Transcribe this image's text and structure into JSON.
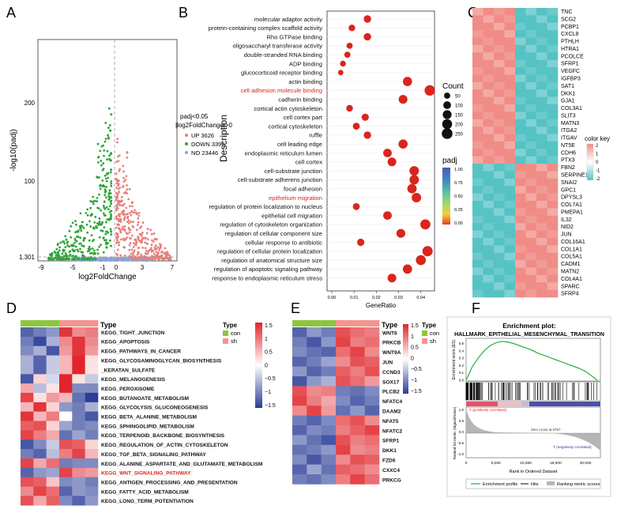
{
  "colors": {
    "up": "#e8807b",
    "down": "#2fa53a",
    "no": "#8aa5d8",
    "dot": "#d9261c",
    "heat_high": "#e0262c",
    "heat_low": "#2b3d97",
    "heat_mid": "#ffffff",
    "hm_c_high": "#f08c86",
    "hm_c_low": "#55c2c4",
    "grp_con": "#8cc63f",
    "grp_sh": "#f6938d",
    "highlight": "#d7261e"
  },
  "panels": {
    "A": "A",
    "B": "B",
    "C": "C",
    "D": "D",
    "E": "E",
    "F": "F"
  },
  "volcano": {
    "ylabel": "-log10(padj)",
    "xlabel": "log2FoldChange",
    "xticks": [
      "-9",
      "-5",
      "-1",
      "0",
      "3",
      "7"
    ],
    "yticks": [
      "200",
      "100",
      "1.301"
    ],
    "legend_title_1": "padj<0.05",
    "legend_title_2": "|log2FoldChange|>0",
    "legend": [
      "UP 3626",
      "DOWN 3396",
      "NO 23446"
    ]
  },
  "chart_data": [
    {
      "type": "scatter",
      "panel": "A",
      "xlabel": "log2FoldChange",
      "ylabel": "-log10(padj)",
      "xlim": [
        -9,
        7.5
      ],
      "ylim": [
        0,
        285
      ],
      "threshold_y": 1.301,
      "series": [
        {
          "name": "UP",
          "count": 3626
        },
        {
          "name": "DOWN",
          "count": 3396
        },
        {
          "name": "NO",
          "count": 23446
        }
      ]
    },
    {
      "type": "scatter",
      "panel": "B",
      "xlabel": "GeneRatio",
      "ylabel": "Description",
      "xlim": [
        0,
        0.045
      ],
      "xticks": [
        "0.00",
        "0.01",
        "0.02",
        "0.03",
        "0.04"
      ],
      "legend_count_title": "Count",
      "legend_count": [
        "50",
        "100",
        "150",
        "200",
        "250"
      ],
      "legend_padj_title": "padj",
      "legend_padj": [
        "1.00",
        "0.75",
        "0.50",
        "0.25",
        "0.00"
      ],
      "terms": [
        "molecular adaptor activity",
        "protein-containing complex scaffold activity",
        "Rho GTPase binding",
        "oligosaccharyl transferase activity",
        "double-stranded RNA binding",
        "ADP binding",
        "glucocorticoid receptor binding",
        "actin binding",
        "cell adhesion molecule binding",
        "cadherin binding",
        "cortical actin cytoskeleton",
        "cell cortex part",
        "cortical cytoskeleton",
        "ruffle",
        "cell leading edge",
        "endoplasmic reticulum lumen",
        "cell cortex",
        "cell-substrate junction",
        "cell-substrate adherens junction",
        "focal adhesion",
        "epithelium migration",
        "regulation of protein localization to nucleus",
        "epithelial cell migration",
        "regulation of cytoskeleton organization",
        "regulation of cellular component size",
        "cellular response to antibiotic",
        "regulation of cellular protein localization",
        "regulation of anatomical structure size",
        "regulation of apoptotic signaling pathway",
        "response to endoplasmic reticulum stress"
      ],
      "highlighted": [
        "cell adhesion molecule binding",
        "epithelium migration"
      ],
      "gene_ratio": [
        0.016,
        0.009,
        0.016,
        0.008,
        0.007,
        0.005,
        0.004,
        0.034,
        0.044,
        0.032,
        0.008,
        0.015,
        0.011,
        0.016,
        0.032,
        0.025,
        0.027,
        0.037,
        0.037,
        0.036,
        0.038,
        0.011,
        0.025,
        0.042,
        0.031,
        0.013,
        0.043,
        0.04,
        0.034,
        0.027
      ],
      "count": [
        90,
        60,
        90,
        50,
        50,
        40,
        30,
        160,
        230,
        150,
        60,
        80,
        70,
        90,
        160,
        130,
        140,
        180,
        180,
        170,
        180,
        70,
        130,
        210,
        150,
        80,
        220,
        200,
        170,
        140
      ]
    },
    {
      "type": "heatmap",
      "panel": "C",
      "legend_title": "color key",
      "legend_ticks": [
        "2",
        "1",
        "0",
        "-1",
        "-2"
      ],
      "genes": [
        "TNC",
        "SCG2",
        "PCBP1",
        "CXCL8",
        "PTHLH",
        "HTRA1",
        "PCOLCE",
        "SFRP1",
        "VEGFC",
        "IGFBP3",
        "SAT1",
        "DKK1",
        "GJA1",
        "COL3A1",
        "SLIT3",
        "MATN3",
        "ITGA2",
        "ITGAV",
        "NT5E",
        "CDH6",
        "PTX3",
        "FBN2",
        "SERPINE1",
        "SNAI2",
        "GPC1",
        "DPYSL3",
        "COL7A1",
        "PMEPA1",
        "IL32",
        "NID2",
        "JUN",
        "COL16A1",
        "COL1A1",
        "COL5A1",
        "CADM1",
        "MATN2",
        "COL4A1",
        "SPARC",
        "SFRP4"
      ]
    },
    {
      "type": "heatmap",
      "panel": "D",
      "legend_type_title": "Type",
      "groups": [
        "con",
        "sh"
      ],
      "col_groups": [
        "con",
        "con",
        "con",
        "sh",
        "sh",
        "sh"
      ],
      "legend_ticks": [
        "1.5",
        "1",
        "0.5",
        "0",
        "−0.5",
        "−1",
        "−1.5"
      ],
      "rows": [
        "KEGG_TIGHT_JUNCTION",
        "KEGG_APOPTOSIS",
        "KEGG_PATHWAYS_IN_CANCER",
        "KEGG_GLYCOSAMINOGLYCAN_BIOSYNTHESIS",
        "_KERATAN_SULFATE",
        "KEGG_MELANOGENESIS",
        "KEGG_PEROXISOME",
        "KEGG_BUTANOATE_METABOLISM",
        "KEGG_GLYCOLYSIS_GLUCONEOGENESIS",
        "KEGG_BETA_ALANINE_METABOLISM",
        "KEGG_SPHINGOLIPID_METABOLISM",
        "KEGG_TERPENOID_BACKBONE_BIOSYNTHESIS",
        "KEGG_REGULATION_OF_ACTIN_CYTOSKELETON",
        "KEGG_TGF_BETA_SIGNALING_PATHWAY",
        "KEGG_ALANINE_ASPARTATE_AND_GLUTAMATE_METABOLISM",
        "KEGG_WNT_SIGNALING_PATHWAY",
        "KEGG_ANTIGEN_PROCESSING_AND_PRESENTATION",
        "KEGG_FATTY_ACID_METABOLISM",
        "KEGG_LONG_TERM_POTENTIATION"
      ],
      "highlighted": [
        "KEGG_WNT_SIGNALING_PATHWAY"
      ],
      "values": [
        [
          -1.2,
          -1.0,
          -0.8,
          1.4,
          0.8,
          0.9
        ],
        [
          -1.0,
          -1.4,
          -0.6,
          0.8,
          1.4,
          0.8
        ],
        [
          -0.9,
          -0.6,
          -1.3,
          0.7,
          1.4,
          0.7
        ],
        [
          -0.6,
          -1.2,
          -0.4,
          0.5,
          1.5,
          0.2
        ],
        [
          -0.6,
          -1.2,
          -0.4,
          0.5,
          1.5,
          0.2
        ],
        [
          -1.3,
          0.3,
          -0.3,
          1.5,
          0.2,
          -0.4
        ],
        [
          0.6,
          -0.5,
          0.2,
          1.5,
          -0.9,
          -0.9
        ],
        [
          1.3,
          0.2,
          0.7,
          0.5,
          -1.1,
          -1.5
        ],
        [
          0.5,
          1.4,
          0.3,
          -0.8,
          -1.0,
          -0.6
        ],
        [
          1.4,
          0.5,
          0.9,
          0.0,
          -1.0,
          -1.3
        ],
        [
          1.1,
          1.2,
          0.3,
          -0.7,
          -1.0,
          -0.9
        ],
        [
          1.3,
          0.9,
          0.6,
          -1.1,
          -0.7,
          -1.0
        ],
        [
          -1.3,
          -0.9,
          -0.4,
          1.2,
          1.1,
          0.3
        ],
        [
          -1.0,
          -1.2,
          -0.5,
          0.9,
          1.3,
          0.5
        ],
        [
          1.3,
          0.6,
          1.0,
          -1.0,
          -0.9,
          -0.9
        ],
        [
          -1.2,
          -0.8,
          -0.7,
          1.3,
          0.8,
          0.7
        ],
        [
          1.2,
          1.1,
          0.4,
          -0.9,
          -0.8,
          -1.0
        ],
        [
          0.8,
          1.3,
          1.0,
          -1.2,
          -0.8,
          -0.9
        ],
        [
          1.2,
          0.6,
          1.1,
          -0.9,
          -1.2,
          -0.8
        ]
      ]
    },
    {
      "type": "heatmap",
      "panel": "E",
      "legend_type_title": "Type",
      "groups": [
        "con",
        "sh"
      ],
      "col_groups": [
        "con",
        "con",
        "con",
        "sh",
        "sh",
        "sh"
      ],
      "legend_ticks": [
        "1.5",
        "1",
        "0.5",
        "0",
        "−0.5",
        "−1",
        "−1.5"
      ],
      "rows": [
        "WNT6",
        "PRKCB",
        "WNT9A",
        "JUN",
        "CCND3",
        "SOX17",
        "PLCB2",
        "NFATC4",
        "DAAM2",
        "NFAT5",
        "NFATC2",
        "SFRP1",
        "DKK1",
        "FZD6",
        "CXXC4",
        "PRKCG"
      ],
      "values": [
        [
          -1.2,
          -0.8,
          -1.0,
          1.2,
          1.0,
          0.9
        ],
        [
          -1.0,
          -1.3,
          -0.8,
          1.3,
          0.9,
          1.0
        ],
        [
          -0.9,
          -1.1,
          -1.2,
          1.0,
          1.3,
          0.8
        ],
        [
          -1.2,
          -1.0,
          -0.7,
          0.8,
          1.2,
          1.1
        ],
        [
          -0.8,
          -1.2,
          -1.0,
          1.1,
          0.9,
          1.2
        ],
        [
          -1.3,
          -0.8,
          -0.6,
          1.2,
          1.0,
          0.7
        ],
        [
          1.2,
          0.8,
          0.9,
          -1.0,
          -1.1,
          -0.9
        ],
        [
          1.3,
          0.9,
          0.6,
          -0.9,
          -1.2,
          -1.0
        ],
        [
          0.8,
          1.3,
          0.7,
          -1.1,
          -0.8,
          -1.2
        ],
        [
          -1.0,
          -1.2,
          -0.9,
          1.0,
          1.2,
          0.8
        ],
        [
          -1.2,
          -0.9,
          -1.0,
          0.9,
          1.1,
          1.3
        ],
        [
          -0.8,
          -1.1,
          -1.3,
          1.2,
          0.9,
          1.0
        ],
        [
          -1.1,
          -1.0,
          -0.8,
          1.3,
          0.8,
          0.9
        ],
        [
          -0.9,
          -1.3,
          -1.0,
          0.8,
          1.2,
          1.1
        ],
        [
          -1.2,
          -0.7,
          -1.1,
          1.1,
          1.0,
          0.8
        ],
        [
          -1.0,
          -1.1,
          -0.9,
          0.9,
          1.3,
          1.0
        ]
      ]
    },
    {
      "type": "line",
      "panel": "F",
      "title": "Enrichment plot:",
      "subtitle": "HALLMARK_EPITHELIAL_MESENCHYMAL_TRANSITION",
      "ylabel": "Enrichment score (ES)",
      "ylabel2": "Ranked list metric (Signal2Noise)",
      "xlabel": "Rank in Ordered Dataset",
      "xticks": [
        "0",
        "5,000",
        "10,000",
        "15,000",
        "20,000"
      ],
      "yticks": [
        "0.5",
        "0.4",
        "0.3",
        "0.2",
        "0.1",
        "0.0"
      ],
      "yticks2": [
        "1.0",
        "0.5",
        "0.0",
        "-0.5",
        "-1.0"
      ],
      "pos_label": "'t' (positively correlated)",
      "neg_label": "'t' (negatively correlated)",
      "zero_cross": "Zero cross at 9757",
      "legend": [
        "Enrichment profile",
        "Hits",
        "Ranking metric scores"
      ],
      "x": [
        0,
        1000,
        2000,
        3000,
        4000,
        5000,
        6000,
        7000,
        8000,
        9000,
        10000,
        11000,
        12000,
        13000,
        14000,
        15000,
        16000,
        17000,
        18000,
        19000,
        20000,
        21000,
        22000
      ],
      "es": [
        0.0,
        0.18,
        0.3,
        0.4,
        0.47,
        0.51,
        0.53,
        0.52,
        0.5,
        0.47,
        0.44,
        0.41,
        0.37,
        0.34,
        0.31,
        0.28,
        0.25,
        0.22,
        0.19,
        0.16,
        0.12,
        0.06,
        0.0
      ]
    }
  ]
}
